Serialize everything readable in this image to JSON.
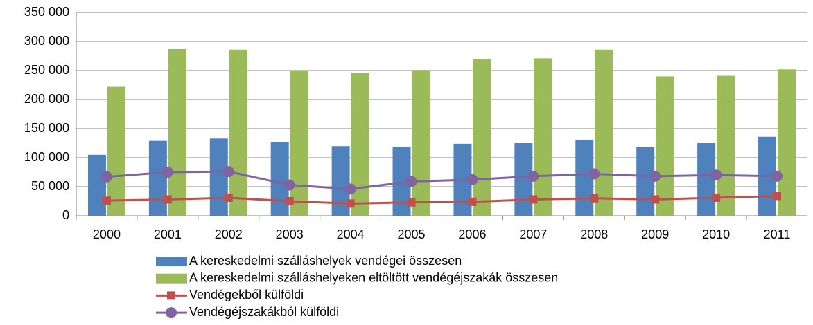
{
  "chart_data": {
    "type": "bar",
    "categories": [
      "2000",
      "2001",
      "2002",
      "2003",
      "2004",
      "2005",
      "2006",
      "2007",
      "2008",
      "2009",
      "2010",
      "2011"
    ],
    "series": [
      {
        "name": "A kereskedelmi szálláshelyek vendégei összesen",
        "color": "#4f81bd",
        "type": "bar",
        "values": [
          105000,
          129000,
          133000,
          127000,
          120000,
          119000,
          124000,
          125000,
          131000,
          118000,
          125000,
          136000
        ]
      },
      {
        "name": "A kereskedelmi szálláshelyeken eltöltött vendégéjszakák összesen",
        "color": "#9bbb59",
        "type": "bar",
        "values": [
          222000,
          287000,
          286000,
          250000,
          246000,
          251000,
          270000,
          271000,
          286000,
          240000,
          241000,
          252000
        ]
      },
      {
        "name": "Vendégekből külföldi",
        "color": "#c0504d",
        "type": "line",
        "marker": "square",
        "values": [
          26000,
          28000,
          31000,
          25000,
          21000,
          23000,
          24000,
          28000,
          30000,
          28000,
          31000,
          34000
        ]
      },
      {
        "name": "Vendégéjszakákból külföldi",
        "color": "#8064a2",
        "type": "line",
        "marker": "circle",
        "values": [
          67000,
          75000,
          76000,
          53000,
          46000,
          59000,
          62000,
          68000,
          72000,
          68000,
          70000,
          68000
        ]
      }
    ],
    "ylim": [
      0,
      350000
    ],
    "yticks": [
      0,
      {
        "value": 50000,
        "label": "50 000"
      },
      {
        "value": 100000,
        "label": "100 000"
      },
      {
        "value": 150000,
        "label": "150 000"
      },
      {
        "value": 200000,
        "label": "200 000"
      },
      {
        "value": 250000,
        "label": "250 000"
      },
      {
        "value": 300000,
        "label": "300 000"
      },
      {
        "value": 350000,
        "label": "350 000"
      }
    ],
    "grid": true,
    "legend": "bottom"
  }
}
